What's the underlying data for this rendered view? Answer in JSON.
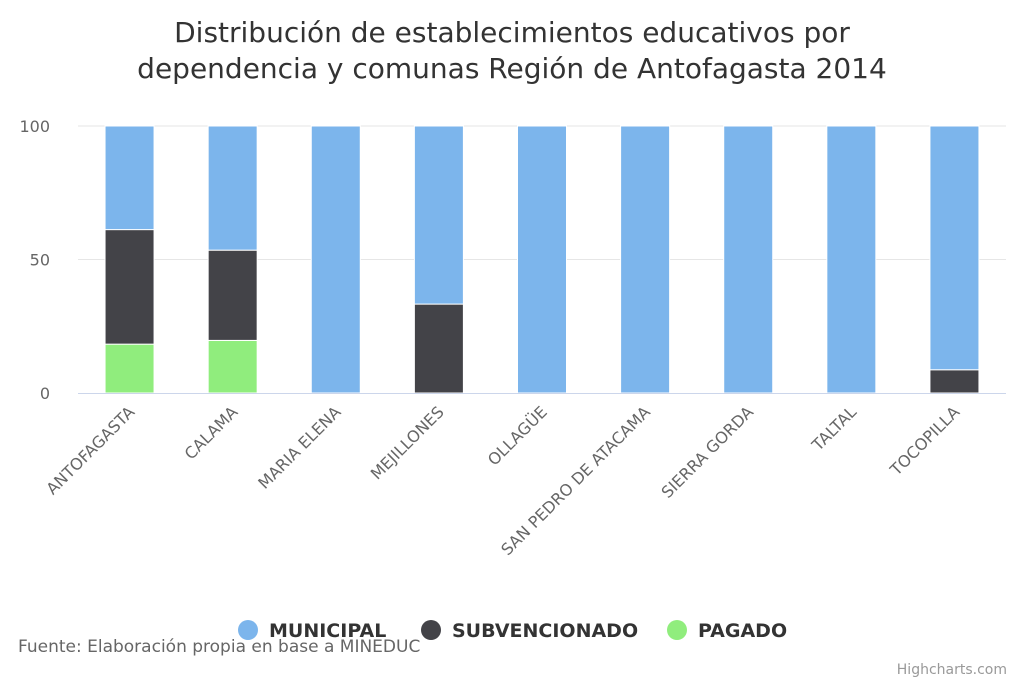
{
  "chart_data": {
    "type": "bar",
    "stacked": true,
    "title_lines": [
      "Distribución de establecimientos educativos por",
      "dependencia y comunas Región de Antofagasta 2014"
    ],
    "categories": [
      "ANTOFAGASTA",
      "CALAMA",
      "MARIA ELENA",
      "MEJILLONES",
      "OLLAGÜE",
      "SAN PEDRO DE ATACAMA",
      "SIERRA GORDA",
      "TALTAL",
      "TOCOPILLA"
    ],
    "series": [
      {
        "name": "MUNICIPAL",
        "color": "#7cb5ec",
        "values": [
          38.8,
          46.5,
          100,
          66.7,
          100,
          100,
          100,
          100,
          91.3
        ]
      },
      {
        "name": "SUBVENCIONADO",
        "color": "#434348",
        "values": [
          42.9,
          33.8,
          0,
          33.3,
          0,
          0,
          0,
          0,
          8.7
        ]
      },
      {
        "name": "PAGADO",
        "color": "#90ed7d",
        "values": [
          18.3,
          19.7,
          0,
          0,
          0,
          0,
          0,
          0,
          0
        ]
      }
    ],
    "y_ticks": [
      "0",
      "50",
      "100"
    ],
    "ylim": [
      0,
      100
    ],
    "grid": true,
    "legend_placement": "bottom-center"
  },
  "source": "Fuente: Elaboración propia en base a MINEDUC",
  "credits": "Highcharts.com"
}
